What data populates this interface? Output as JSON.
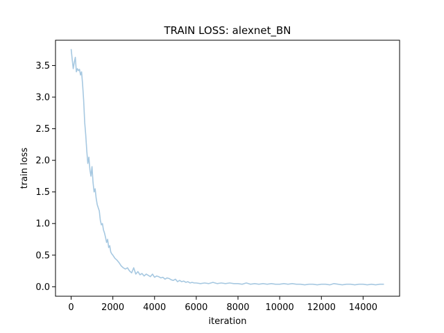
{
  "chart_data": {
    "type": "line",
    "title": "TRAIN LOSS: alexnet_BN",
    "xlabel": "iteration",
    "ylabel": "train loss",
    "xlim": [
      -750,
      15750
    ],
    "ylim": [
      -0.15,
      3.9
    ],
    "xticks": [
      0,
      2000,
      4000,
      6000,
      8000,
      10000,
      12000,
      14000
    ],
    "xtick_labels": [
      "0",
      "2000",
      "4000",
      "6000",
      "8000",
      "10000",
      "12000",
      "14000"
    ],
    "yticks": [
      0.0,
      0.5,
      1.0,
      1.5,
      2.0,
      2.5,
      3.0,
      3.5
    ],
    "ytick_labels": [
      "0.0",
      "0.5",
      "1.0",
      "1.5",
      "2.0",
      "2.5",
      "3.0",
      "3.5"
    ],
    "grid": false,
    "legend": "none",
    "series": [
      {
        "color": "#a6c8e1",
        "x": [
          0,
          50,
          100,
          150,
          200,
          250,
          300,
          350,
          400,
          450,
          500,
          550,
          600,
          650,
          700,
          750,
          800,
          850,
          900,
          950,
          1000,
          1050,
          1100,
          1150,
          1200,
          1250,
          1300,
          1350,
          1400,
          1450,
          1500,
          1550,
          1600,
          1650,
          1700,
          1750,
          1800,
          1850,
          1900,
          1950,
          2000,
          2100,
          2200,
          2300,
          2400,
          2500,
          2600,
          2700,
          2800,
          2900,
          3000,
          3100,
          3200,
          3300,
          3400,
          3500,
          3600,
          3700,
          3800,
          3900,
          4000,
          4100,
          4200,
          4300,
          4400,
          4500,
          4600,
          4700,
          4800,
          4900,
          5000,
          5100,
          5200,
          5300,
          5400,
          5500,
          5600,
          5700,
          5800,
          5900,
          6000,
          6200,
          6400,
          6600,
          6800,
          7000,
          7200,
          7400,
          7600,
          7800,
          8000,
          8200,
          8400,
          8600,
          8800,
          9000,
          9200,
          9400,
          9600,
          9800,
          10000,
          10200,
          10400,
          10600,
          10800,
          11000,
          11200,
          11400,
          11600,
          11800,
          12000,
          12200,
          12400,
          12600,
          12800,
          13000,
          13200,
          13400,
          13600,
          13800,
          14000,
          14200,
          14400,
          14600,
          14800,
          15000
        ],
        "y": [
          3.76,
          3.6,
          3.45,
          3.55,
          3.63,
          3.4,
          3.45,
          3.42,
          3.44,
          3.35,
          3.4,
          3.2,
          2.95,
          2.6,
          2.4,
          2.15,
          1.95,
          2.05,
          1.85,
          1.75,
          1.9,
          1.65,
          1.5,
          1.55,
          1.4,
          1.3,
          1.25,
          1.2,
          1.05,
          0.98,
          1.0,
          0.9,
          0.85,
          0.78,
          0.7,
          0.75,
          0.62,
          0.65,
          0.55,
          0.52,
          0.5,
          0.45,
          0.42,
          0.38,
          0.33,
          0.3,
          0.28,
          0.3,
          0.25,
          0.22,
          0.3,
          0.2,
          0.24,
          0.19,
          0.21,
          0.17,
          0.2,
          0.18,
          0.16,
          0.2,
          0.15,
          0.17,
          0.16,
          0.14,
          0.15,
          0.12,
          0.14,
          0.13,
          0.11,
          0.1,
          0.12,
          0.08,
          0.1,
          0.08,
          0.09,
          0.07,
          0.08,
          0.06,
          0.07,
          0.06,
          0.06,
          0.05,
          0.06,
          0.05,
          0.07,
          0.05,
          0.06,
          0.05,
          0.06,
          0.05,
          0.05,
          0.04,
          0.06,
          0.04,
          0.05,
          0.04,
          0.05,
          0.04,
          0.05,
          0.04,
          0.04,
          0.05,
          0.04,
          0.05,
          0.04,
          0.04,
          0.03,
          0.04,
          0.04,
          0.03,
          0.04,
          0.04,
          0.03,
          0.05,
          0.04,
          0.03,
          0.04,
          0.04,
          0.03,
          0.04,
          0.04,
          0.03,
          0.04,
          0.03,
          0.04,
          0.04
        ]
      }
    ]
  }
}
